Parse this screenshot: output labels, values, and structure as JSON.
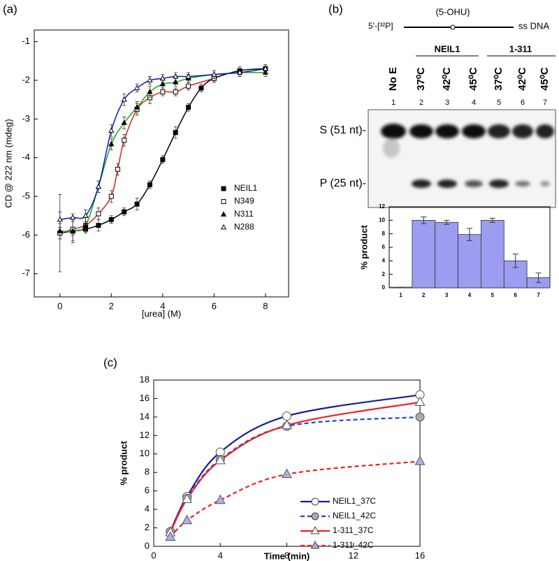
{
  "chart_data": [
    {
      "type": "scatter",
      "panel_label": "(a)",
      "ylabel": "CD @ 222 nm (mdeg)",
      "xlabel": "[urea] (M)",
      "xlim": [
        -1,
        8.9
      ],
      "ylim": [
        -7.6,
        -0.7
      ],
      "xticks": [
        0,
        2,
        4,
        6,
        8
      ],
      "yticks": [
        -7,
        -6,
        -5,
        -4,
        -3,
        -2,
        -1
      ],
      "legend": "lower right",
      "series": [
        {
          "name": "NEIL1",
          "color": "#000000",
          "marker": "square",
          "marker_fill": "#000000",
          "x": [
            0,
            0.5,
            1,
            1.5,
            2,
            2.5,
            3,
            3.5,
            4,
            4.5,
            5,
            5.5,
            6,
            7,
            8
          ],
          "values": [
            -5.95,
            -5.9,
            -5.85,
            -5.75,
            -5.6,
            -5.4,
            -5.2,
            -4.7,
            -4.05,
            -3.35,
            -2.7,
            -2.2,
            -1.95,
            -1.75,
            -1.7
          ],
          "errors": [
            0.15,
            0.1,
            0.1,
            0.15,
            0.1,
            0.1,
            0.15,
            0.1,
            0.1,
            0.15,
            0.1,
            0.1,
            0.1,
            0.1,
            0.1
          ]
        },
        {
          "name": "N349",
          "color": "#e02020",
          "marker": "square",
          "marker_fill": "#ffffff",
          "x": [
            0,
            0.5,
            1,
            1.5,
            2,
            2.25,
            2.5,
            3,
            3.5,
            4,
            4.5,
            5,
            6
          ],
          "values": [
            -5.95,
            -5.85,
            -5.75,
            -5.45,
            -5.0,
            -4.3,
            -3.55,
            -2.75,
            -2.45,
            -2.3,
            -2.3,
            -2.15,
            -1.95
          ],
          "errors": [
            1.0,
            0.3,
            0.2,
            0.15,
            0.15,
            0.15,
            0.15,
            0.15,
            0.15,
            0.1,
            0.1,
            0.1,
            0.1
          ]
        },
        {
          "name": "N311",
          "color": "#10b010",
          "marker": "triangle",
          "marker_fill": "#000000",
          "x": [
            0,
            0.5,
            1,
            1.5,
            2,
            2.5,
            3,
            3.5,
            4,
            4.5,
            5,
            6,
            7,
            8
          ],
          "values": [
            -5.9,
            -5.9,
            -5.75,
            -4.75,
            -3.65,
            -3.1,
            -2.7,
            -2.3,
            -2.1,
            -2.05,
            -1.95,
            -1.85,
            -1.8,
            -1.8
          ],
          "errors": [
            0.2,
            0.3,
            0.2,
            0.15,
            0.15,
            0.15,
            0.15,
            0.15,
            0.1,
            0.1,
            0.1,
            0.1,
            0.1,
            0.1
          ]
        },
        {
          "name": "N288",
          "color": "#1010d0",
          "marker": "triangle",
          "marker_fill": "#ffffff",
          "x": [
            0,
            0.5,
            1,
            1.5,
            2,
            2.5,
            3,
            3.5,
            4,
            4.5,
            5,
            6,
            7,
            8
          ],
          "values": [
            -5.6,
            -5.55,
            -5.5,
            -4.75,
            -3.3,
            -2.5,
            -2.2,
            -2.0,
            -1.95,
            -1.9,
            -1.9,
            -1.85,
            -1.8,
            -1.7
          ],
          "errors": [
            0.2,
            0.1,
            0.15,
            0.15,
            0.15,
            0.15,
            0.1,
            0.1,
            0.1,
            0.1,
            0.1,
            0.1,
            0.1,
            0.1
          ]
        }
      ]
    },
    {
      "type": "bar",
      "ylabel": "% product",
      "categories": [
        "1",
        "2",
        "3",
        "4",
        "5",
        "6",
        "7"
      ],
      "values": [
        0.1,
        10,
        9.7,
        7.9,
        10,
        4,
        1.5
      ],
      "errors": [
        0,
        0.5,
        0.3,
        0.9,
        0.3,
        1.0,
        0.7
      ],
      "color": "#9c9cf0",
      "ylim": [
        0,
        12
      ],
      "yticks": [
        0,
        2,
        4,
        6,
        8,
        10,
        12
      ]
    },
    {
      "type": "line",
      "panel_label": "(c)",
      "xlabel": "Time (min)",
      "ylabel": "% product",
      "x": [
        1,
        2,
        4,
        8,
        16
      ],
      "xlim": [
        0,
        16
      ],
      "ylim": [
        0,
        18
      ],
      "xticks": [
        0,
        4,
        8,
        12,
        16
      ],
      "yticks": [
        0,
        2,
        4,
        6,
        8,
        10,
        12,
        14,
        16,
        18
      ],
      "legend": "lower right",
      "series": [
        {
          "name": "NEIL1_37C",
          "color": "#1a1a9a",
          "linestyle": "solid",
          "marker": "circle",
          "marker_fill": "#ffffff",
          "values": [
            1.6,
            5.4,
            10.2,
            14.1,
            16.4
          ]
        },
        {
          "name": "NEIL1_42C",
          "color": "#2040e0",
          "linestyle": "dashed",
          "marker": "circle",
          "marker_fill": "#aaaaaa",
          "values": [
            1.6,
            5.2,
            9.4,
            13.0,
            14.0
          ]
        },
        {
          "name": "1-311_37C",
          "color": "#ee2020",
          "linestyle": "solid",
          "marker": "triangle",
          "marker_fill": "#ffffff",
          "values": [
            1.5,
            5.1,
            9.3,
            13.1,
            15.6
          ]
        },
        {
          "name": "1-311_42C",
          "color": "#ee2020",
          "linestyle": "dashed",
          "marker": "triangle",
          "marker_fill": "#aab0ee",
          "values": [
            1.0,
            2.8,
            5.0,
            7.8,
            9.2
          ]
        }
      ]
    }
  ],
  "gel": {
    "panel_label": "(b)",
    "substrate_left": "5'-[³²P]",
    "lesion": "(5-OHU)",
    "substrate_right": "ss DNA",
    "groups": [
      "NEIL1",
      "1-311"
    ],
    "lane_labels": [
      "No E",
      "37⁰C",
      "42⁰C",
      "45⁰C",
      "37⁰C",
      "42⁰C",
      "45⁰C"
    ],
    "lane_numbers": [
      "1",
      "2",
      "3",
      "4",
      "5",
      "6",
      "7"
    ],
    "bands": [
      "S (51 nt)-",
      "P (25 nt)-"
    ]
  }
}
